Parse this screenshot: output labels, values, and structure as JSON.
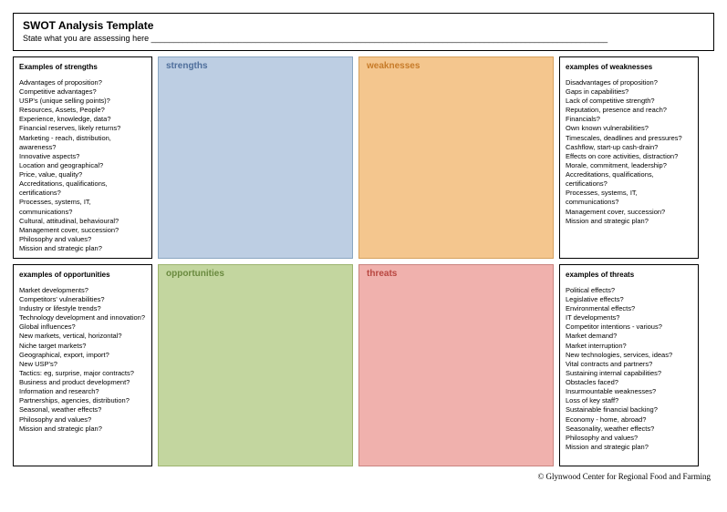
{
  "header": {
    "title": "SWOT Analysis Template",
    "subtitle": "State what you are assessing here ____________________________________________________________________________________________________"
  },
  "strengths_examples": {
    "title": "Examples of strengths",
    "items": [
      "Advantages of proposition?",
      "Competitive advantages?",
      "USP's (unique selling points)?",
      "Resources, Assets, People?",
      "Experience, knowledge, data?",
      "Financial reserves, likely returns?",
      "Marketing - reach, distribution, awareness?",
      "Innovative aspects?",
      "Location and geographical?",
      "Price, value, quality?",
      "Accreditations, qualifications, certifications?",
      "Processes, systems, IT, communications?",
      "Cultural, attitudinal, behavioural?",
      "Management cover, succession?",
      "Philosophy and values?",
      "Mission and strategic plan?"
    ]
  },
  "weaknesses_examples": {
    "title": "examples of weaknesses",
    "items": [
      "Disadvantages of proposition?",
      "Gaps in capabilities?",
      "Lack of competitive strength?",
      "Reputation, presence and reach?",
      "Financials?",
      "Own known vulnerabilities?",
      "Timescales, deadlines and pressures?",
      "Cashflow, start-up cash-drain?",
      "Effects on core activities, distraction?",
      "Morale, commitment, leadership?",
      "Accreditations, qualifications, certifications?",
      "Processes, systems, IT, communications?",
      "Management cover, succession?",
      "Mission and strategic plan?"
    ]
  },
  "opportunities_examples": {
    "title": "examples of opportunities",
    "items": [
      "Market developments?",
      "Competitors' vulnerabilities?",
      "Industry or lifestyle trends?",
      "Technology development and innovation?",
      "Global influences?",
      "New markets, vertical, horizontal?",
      "Niche target markets?",
      "Geographical, export, import?",
      "New USP's?",
      "Tactics: eg, surprise, major contracts?",
      "Business and product development?",
      "Information and research?",
      "Partnerships, agencies, distribution?",
      "Seasonal, weather effects?",
      "Philosophy and values?",
      "Mission and strategic plan?"
    ]
  },
  "threats_examples": {
    "title": "examples of threats",
    "items": [
      "Political effects?",
      "Legislative effects?",
      "Environmental effects?",
      "IT developments?",
      "Competitor intentions - various?",
      "Market demand?",
      "Market interruption?",
      "New technologies, services, ideas?",
      "Vital contracts and partners?",
      "Sustaining internal capabilities?",
      "Obstacles faced?",
      "Insurmountable weaknesses?",
      "Loss of key staff?",
      "Sustainable financial backing?",
      "Economy - home, abroad?",
      "Seasonality, weather effects?",
      "Philosophy and values?",
      "Mission and strategic plan?"
    ]
  },
  "quadrants": {
    "strengths": {
      "label": "strengths",
      "bg": "#bdcee3",
      "border": "#8aa6c1",
      "text": "#4e6e9b"
    },
    "weaknesses": {
      "label": "weaknesses",
      "bg": "#f4c68e",
      "border": "#d6a15d",
      "text": "#c77b29"
    },
    "opportunities": {
      "label": "opportunities",
      "bg": "#c3d69f",
      "border": "#9cb36e",
      "text": "#6a8a3f"
    },
    "threats": {
      "label": "threats",
      "bg": "#f0b1ad",
      "border": "#c9847f",
      "text": "#b84640"
    }
  },
  "footer": "© Glynwood Center for Regional Food and Farming"
}
